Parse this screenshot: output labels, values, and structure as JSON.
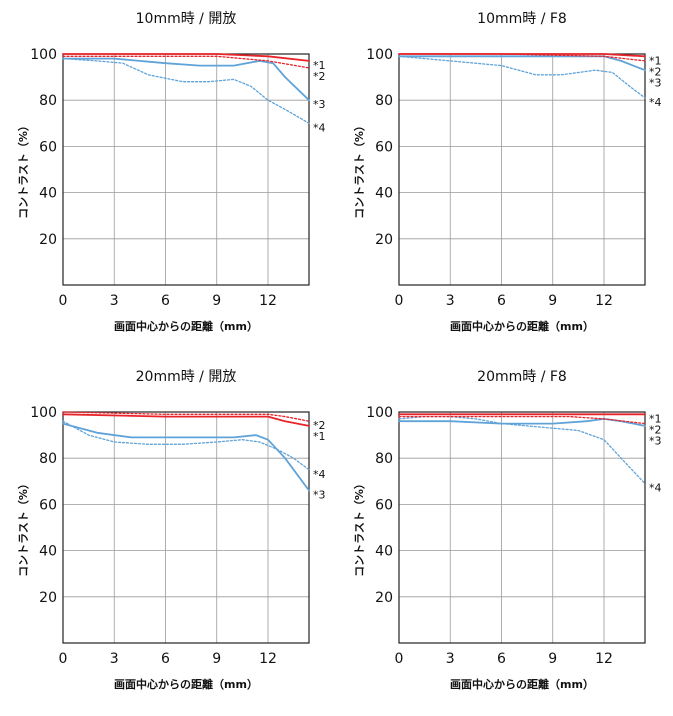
{
  "chart_data": [
    {
      "type": "line",
      "title": "10mm時 / 開放",
      "xlabel": "画面中心からの距離（mm）",
      "ylabel": "コントラスト（%）",
      "xlim": [
        0,
        14.4
      ],
      "ylim": [
        0,
        100
      ],
      "xticks": [
        "0",
        "3",
        "6",
        "9",
        "12"
      ],
      "yticks": [
        "20",
        "40",
        "60",
        "80",
        "100"
      ],
      "series": [
        {
          "name": "*1",
          "color": "#e8242a",
          "style": "solid",
          "x": [
            0,
            3,
            6,
            9,
            12,
            14.4
          ],
          "y": [
            100,
            100,
            100,
            100,
            99,
            97
          ]
        },
        {
          "name": "*2",
          "color": "#e8242a",
          "style": "dotted",
          "x": [
            0,
            3,
            6,
            9,
            12,
            14.4
          ],
          "y": [
            99,
            99,
            99,
            99,
            97,
            94
          ]
        },
        {
          "name": "*3",
          "color": "#5fa3d9",
          "style": "solid",
          "x": [
            0,
            3,
            6,
            8,
            10,
            11.5,
            12.3,
            13,
            14.4
          ],
          "y": [
            98,
            98,
            96,
            95,
            95,
            97,
            96,
            90,
            80
          ]
        },
        {
          "name": "*4",
          "color": "#5fa3d9",
          "style": "dotted",
          "x": [
            0,
            2,
            3.5,
            5,
            7,
            8.5,
            10,
            11,
            12,
            13,
            14.4
          ],
          "y": [
            98,
            97,
            96,
            91,
            88,
            88,
            89,
            86,
            80,
            76,
            70
          ]
        }
      ]
    },
    {
      "type": "line",
      "title": "10mm時 / F8",
      "xlabel": "画面中心からの距離（mm）",
      "ylabel": "コントラスト（%）",
      "xlim": [
        0,
        14.4
      ],
      "ylim": [
        0,
        100
      ],
      "xticks": [
        "0",
        "3",
        "6",
        "9",
        "12"
      ],
      "yticks": [
        "20",
        "40",
        "60",
        "80",
        "100"
      ],
      "series": [
        {
          "name": "*1",
          "color": "#e8242a",
          "style": "solid",
          "x": [
            0,
            6,
            12,
            14.4
          ],
          "y": [
            100,
            100,
            100,
            99
          ]
        },
        {
          "name": "*2",
          "color": "#e8242a",
          "style": "dotted",
          "x": [
            0,
            6,
            12,
            14.4
          ],
          "y": [
            100,
            100,
            99,
            97
          ]
        },
        {
          "name": "*3",
          "color": "#5fa3d9",
          "style": "solid",
          "x": [
            0,
            3,
            6,
            9,
            12,
            13,
            14.4
          ],
          "y": [
            99,
            99,
            99,
            99,
            99,
            97,
            93
          ]
        },
        {
          "name": "*4",
          "color": "#5fa3d9",
          "style": "dotted",
          "x": [
            0,
            3,
            6,
            8,
            9.5,
            11.5,
            12.5,
            13.5,
            14.4
          ],
          "y": [
            99,
            97,
            95,
            91,
            91,
            93,
            92,
            86,
            81
          ]
        }
      ]
    },
    {
      "type": "line",
      "title": "20mm時 / 開放",
      "xlabel": "画面中心からの距離（mm）",
      "ylabel": "コントラスト（%）",
      "xlim": [
        0,
        14.4
      ],
      "ylim": [
        0,
        100
      ],
      "xticks": [
        "0",
        "3",
        "6",
        "9",
        "12"
      ],
      "yticks": [
        "20",
        "40",
        "60",
        "80",
        "100"
      ],
      "series": [
        {
          "name": "*1",
          "color": "#e8242a",
          "style": "solid",
          "x": [
            0,
            6,
            12,
            13,
            14.4
          ],
          "y": [
            99,
            98,
            98,
            96,
            94
          ]
        },
        {
          "name": "*2",
          "color": "#e8242a",
          "style": "dotted",
          "x": [
            0,
            6,
            12,
            13,
            14.4
          ],
          "y": [
            100,
            99,
            99,
            98,
            96
          ]
        },
        {
          "name": "*3",
          "color": "#5fa3d9",
          "style": "solid",
          "x": [
            0,
            2,
            4,
            6,
            8,
            10,
            11.3,
            12,
            13,
            14.4
          ],
          "y": [
            95,
            91,
            89,
            89,
            89,
            89,
            90,
            88,
            80,
            66
          ]
        },
        {
          "name": "*4",
          "color": "#5fa3d9",
          "style": "dotted",
          "x": [
            0,
            1.5,
            3,
            5,
            7,
            9,
            10.5,
            11.5,
            12.5,
            13.5,
            14.4
          ],
          "y": [
            96,
            90,
            87,
            86,
            86,
            87,
            88,
            87,
            84,
            80,
            75
          ]
        }
      ]
    },
    {
      "type": "line",
      "title": "20mm時 / F8",
      "xlabel": "画面中心からの距離（mm）",
      "ylabel": "コントラスト（%）",
      "xlim": [
        0,
        14.4
      ],
      "ylim": [
        0,
        100
      ],
      "xticks": [
        "0",
        "3",
        "6",
        "9",
        "12"
      ],
      "yticks": [
        "20",
        "40",
        "60",
        "80",
        "100"
      ],
      "series": [
        {
          "name": "*1",
          "color": "#e8242a",
          "style": "solid",
          "x": [
            0,
            6,
            12,
            14.4
          ],
          "y": [
            99,
            99,
            99,
            99
          ]
        },
        {
          "name": "*2",
          "color": "#e8242a",
          "style": "dotted",
          "x": [
            0,
            6,
            10,
            12,
            14.4
          ],
          "y": [
            98,
            98,
            98,
            97,
            95
          ]
        },
        {
          "name": "*3",
          "color": "#5fa3d9",
          "style": "solid",
          "x": [
            0,
            3,
            6,
            9,
            11,
            12,
            13,
            14.4
          ],
          "y": [
            96,
            96,
            95,
            95,
            96,
            97,
            96,
            94
          ]
        },
        {
          "name": "*4",
          "color": "#5fa3d9",
          "style": "dotted",
          "x": [
            0,
            1.5,
            3,
            4.5,
            6,
            7.5,
            9,
            10.5,
            12,
            13,
            14.4
          ],
          "y": [
            97,
            98,
            98,
            97,
            95,
            94,
            93,
            92,
            88,
            80,
            69
          ]
        }
      ]
    }
  ]
}
